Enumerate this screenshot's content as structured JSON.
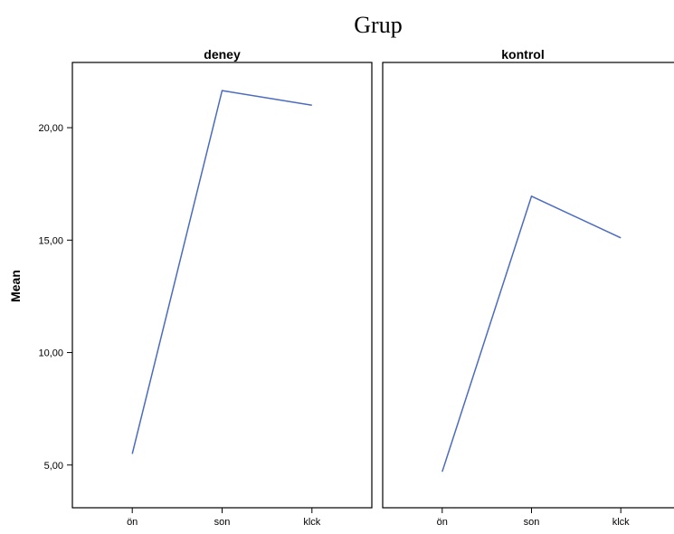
{
  "chart_data": {
    "type": "line",
    "title": "Grup",
    "ylabel": "Mean",
    "xlabel": "",
    "categories": [
      "ön",
      "son",
      "klck"
    ],
    "ylim": [
      3.1,
      22.9
    ],
    "yticks": [
      5,
      10,
      15,
      20
    ],
    "ytick_labels": [
      "5,00",
      "10,00",
      "15,00",
      "20,00"
    ],
    "grid": false,
    "line_color": "#4a6bbf",
    "panels": [
      {
        "title": "deney",
        "values": [
          5.5,
          21.65,
          21.0
        ]
      },
      {
        "title": "kontrol",
        "values": [
          4.7,
          16.95,
          15.1
        ]
      }
    ]
  }
}
